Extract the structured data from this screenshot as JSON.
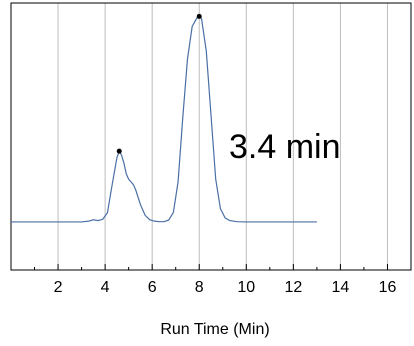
{
  "chart_data": {
    "type": "line",
    "title": "",
    "xlabel": "Run Time (Min)",
    "ylabel": "",
    "xlim": [
      0,
      17
    ],
    "ylim": [
      0,
      1
    ],
    "x_ticks": [
      2,
      4,
      6,
      8,
      10,
      12,
      14,
      16
    ],
    "x_tick_labels": [
      "2",
      "4",
      "6",
      "8",
      "10",
      "12",
      "14",
      "16"
    ],
    "grid": "vertical",
    "line_color": "#4a6fa5",
    "marker_color": "#000000",
    "annotation": "3.4 min",
    "series": [
      {
        "x": [
          0,
          1,
          2,
          3,
          3.3,
          3.5,
          3.7,
          3.9,
          4.1,
          4.3,
          4.5,
          4.6,
          4.7,
          4.8,
          4.9,
          5.0,
          5.1,
          5.2,
          5.3,
          5.5,
          5.7,
          5.9,
          6.1,
          6.3,
          6.5,
          6.7,
          6.9,
          7.1,
          7.3,
          7.5,
          7.7,
          7.9,
          8.0,
          8.1,
          8.3,
          8.5,
          8.7,
          8.9,
          9.1,
          9.3,
          9.6,
          10,
          11,
          12,
          13
        ],
        "y": [
          0.18,
          0.18,
          0.18,
          0.18,
          0.183,
          0.188,
          0.185,
          0.19,
          0.215,
          0.32,
          0.42,
          0.445,
          0.43,
          0.4,
          0.36,
          0.34,
          0.33,
          0.32,
          0.3,
          0.245,
          0.205,
          0.188,
          0.183,
          0.181,
          0.181,
          0.187,
          0.215,
          0.33,
          0.57,
          0.79,
          0.912,
          0.944,
          0.95,
          0.94,
          0.82,
          0.58,
          0.34,
          0.23,
          0.195,
          0.185,
          0.181,
          0.18,
          0.18,
          0.18,
          0.18
        ]
      }
    ],
    "markers": [
      {
        "x": 4.6,
        "y": 0.445
      },
      {
        "x": 8.0,
        "y": 0.95
      }
    ]
  }
}
